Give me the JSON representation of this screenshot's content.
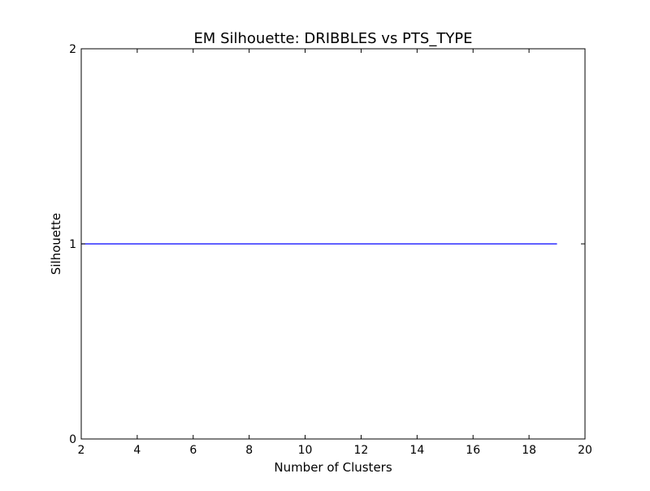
{
  "chart_data": {
    "type": "line",
    "title": "EM Silhouette: DRIBBLES vs PTS_TYPE",
    "xlabel": "Number of Clusters",
    "ylabel": "Silhouette",
    "xlim": [
      2,
      20
    ],
    "ylim": [
      0,
      2
    ],
    "xticks": [
      2,
      4,
      6,
      8,
      10,
      12,
      14,
      16,
      18,
      20
    ],
    "yticks": [
      0,
      1,
      2
    ],
    "grid": false,
    "legend": "none",
    "series": [
      {
        "color": "#0000ff",
        "x": [
          2,
          3,
          4,
          5,
          6,
          7,
          8,
          9,
          10,
          11,
          12,
          13,
          14,
          15,
          16,
          17,
          18,
          19
        ],
        "y": [
          1,
          1,
          1,
          1,
          1,
          1,
          1,
          1,
          1,
          1,
          1,
          1,
          1,
          1,
          1,
          1,
          1,
          1
        ]
      }
    ]
  }
}
